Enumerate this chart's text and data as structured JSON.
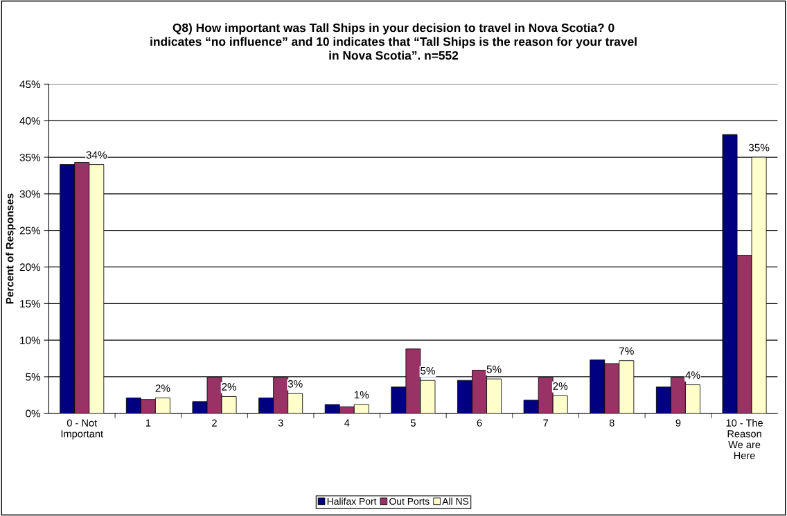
{
  "chart_data": {
    "type": "bar",
    "title": "Q8) How important was Tall Ships in your decision to travel in Nova Scotia? 0\nindicates “no influence” and 10 indicates that “Tall Ships is the reason for your travel\nin Nova Scotia”. n=552",
    "ylabel": "Percent of Responses",
    "categories": [
      "0 - Not\nImportant",
      "1",
      "2",
      "3",
      "4",
      "5",
      "6",
      "7",
      "8",
      "9",
      "10 - The\nReason\nWe are\nHere"
    ],
    "series": [
      {
        "name": "Halifax Port",
        "color": "#000080",
        "values": [
          34,
          2.1,
          1.6,
          2.1,
          1.2,
          3.6,
          4.5,
          1.8,
          7.3,
          3.6,
          38.1
        ]
      },
      {
        "name": "Out Ports",
        "color": "#993366",
        "values": [
          34.3,
          1.9,
          4.9,
          4.9,
          0.9,
          8.8,
          5.9,
          4.9,
          6.8,
          4.9,
          21.6
        ]
      },
      {
        "name": "All NS",
        "color": "#ffffcc",
        "values": [
          34,
          2.1,
          2.3,
          2.7,
          1.2,
          4.5,
          4.7,
          2.4,
          7.2,
          3.9,
          35
        ],
        "value_labels": [
          "34%",
          "2%",
          "2%",
          "3%",
          "1%",
          "5%",
          "5%",
          "2%",
          "7%",
          "4%",
          "35%"
        ]
      }
    ],
    "ylim": [
      0,
      45
    ],
    "yticks": [
      {
        "value": 0,
        "label": "0%"
      },
      {
        "value": 5,
        "label": "5%"
      },
      {
        "value": 10,
        "label": "10%"
      },
      {
        "value": 15,
        "label": "15%"
      },
      {
        "value": 20,
        "label": "20%"
      },
      {
        "value": 25,
        "label": "25%"
      },
      {
        "value": 30,
        "label": "30%"
      },
      {
        "value": 35,
        "label": "35%"
      },
      {
        "value": 40,
        "label": "40%"
      },
      {
        "value": 45,
        "label": "45%"
      }
    ],
    "grid": "y",
    "legend": "bottom"
  }
}
